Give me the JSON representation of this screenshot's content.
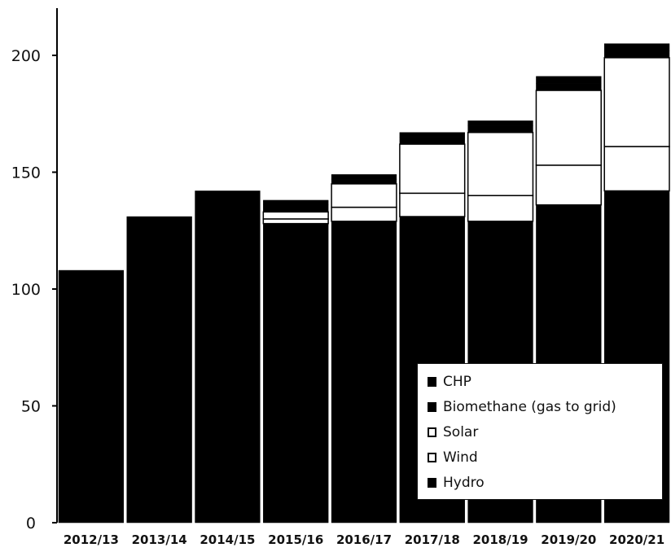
{
  "chart_data": {
    "type": "bar",
    "stacked": true,
    "categories": [
      "2012/13",
      "2013/14",
      "2014/15",
      "2015/16",
      "2016/17",
      "2017/18",
      "2018/19",
      "2019/20",
      "2020/21"
    ],
    "series": [
      {
        "name": "Hydro",
        "color": "#000000",
        "values": [
          108,
          131,
          142,
          128,
          129,
          131,
          129,
          136,
          142
        ]
      },
      {
        "name": "Wind",
        "color": "#ffffff",
        "values": [
          0,
          0,
          0,
          2,
          6,
          10,
          11,
          17,
          19
        ]
      },
      {
        "name": "Solar",
        "color": "#ffffff",
        "values": [
          0,
          0,
          0,
          3,
          10,
          21,
          27,
          32,
          38
        ]
      },
      {
        "name": "Biomethane (gas to grid)",
        "color": "#000000",
        "values": [
          0,
          0,
          0,
          3,
          2,
          3,
          3,
          3,
          3
        ]
      },
      {
        "name": "CHP",
        "color": "#000000",
        "values": [
          0,
          0,
          0,
          2,
          2,
          2,
          2,
          3,
          3
        ]
      }
    ],
    "yticks": [
      0,
      50,
      100,
      150,
      200
    ],
    "ylim": [
      0,
      215
    ],
    "title": "",
    "xlabel": "",
    "ylabel": "",
    "grid": false,
    "legend_position": "bottom-right"
  },
  "legend": {
    "items": [
      {
        "label": "CHP",
        "style": "filled"
      },
      {
        "label": "Biomethane (gas to grid)",
        "style": "filled"
      },
      {
        "label": "Solar",
        "style": "hollow"
      },
      {
        "label": "Wind",
        "style": "hollow"
      },
      {
        "label": "Hydro",
        "style": "filled"
      }
    ]
  }
}
